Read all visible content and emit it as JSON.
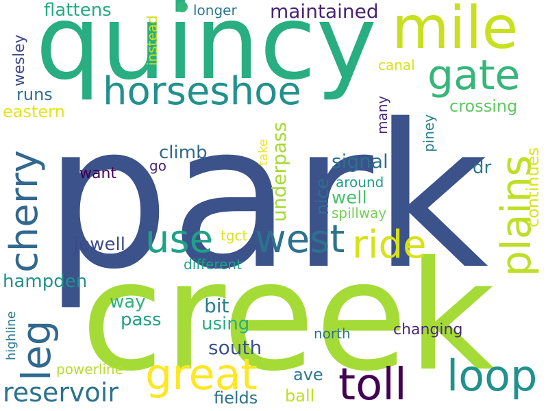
{
  "words": [
    {
      "text": "park",
      "color": "#3b528b"
    },
    {
      "text": "creek",
      "color": "#a5db36"
    },
    {
      "text": "quincy",
      "color": "#28ae80"
    },
    {
      "text": "mile",
      "color": "#c8e020"
    },
    {
      "text": "horseshoe",
      "color": "#21918c"
    },
    {
      "text": "gate",
      "color": "#35b779"
    },
    {
      "text": "cherry",
      "color": "#31688e"
    },
    {
      "text": "west",
      "color": "#2c728e"
    },
    {
      "text": "use",
      "color": "#1fa187"
    },
    {
      "text": "ride",
      "color": "#d8e219"
    },
    {
      "text": "plains",
      "color": "#bddf26"
    },
    {
      "text": "great",
      "color": "#fde725"
    },
    {
      "text": "toll",
      "color": "#440154"
    },
    {
      "text": "loop",
      "color": "#21918c"
    },
    {
      "text": "leg",
      "color": "#31688e"
    },
    {
      "text": "reservoir",
      "color": "#2c728e"
    },
    {
      "text": "flattens",
      "color": "#25ab82"
    },
    {
      "text": "maintained",
      "color": "#482374"
    },
    {
      "text": "longer",
      "color": "#2a788e"
    },
    {
      "text": "instead",
      "color": "#d0e11c"
    },
    {
      "text": "wesley",
      "color": "#3e4989"
    },
    {
      "text": "runs",
      "color": "#2e6f8e"
    },
    {
      "text": "eastern",
      "color": "#e2e418"
    },
    {
      "text": "canal",
      "color": "#d5e21a"
    },
    {
      "text": "crossing",
      "color": "#5ec962"
    },
    {
      "text": "continues",
      "color": "#dde318"
    },
    {
      "text": "many",
      "color": "#482878"
    },
    {
      "text": "piney",
      "color": "#27808e"
    },
    {
      "text": "climb",
      "color": "#31688e"
    },
    {
      "text": "go",
      "color": "#482475"
    },
    {
      "text": "want",
      "color": "#440154"
    },
    {
      "text": "take",
      "color": "#f1e51d"
    },
    {
      "text": "underpass",
      "color": "#a5db36"
    },
    {
      "text": "signal",
      "color": "#2c728e"
    },
    {
      "text": "dr",
      "color": "#2a788e"
    },
    {
      "text": "nice",
      "color": "#2e6f8e"
    },
    {
      "text": "around",
      "color": "#1f9e89"
    },
    {
      "text": "well",
      "color": "#4ac16d"
    },
    {
      "text": "spillway",
      "color": "#75d054"
    },
    {
      "text": "jewell",
      "color": "#3e4989"
    },
    {
      "text": "tgct",
      "color": "#dde318"
    },
    {
      "text": "different",
      "color": "#1fa187"
    },
    {
      "text": "hampden",
      "color": "#20928c"
    },
    {
      "text": "way",
      "color": "#2db27d"
    },
    {
      "text": "bit",
      "color": "#27808e"
    },
    {
      "text": "pass",
      "color": "#1fa187"
    },
    {
      "text": "using",
      "color": "#28ae80"
    },
    {
      "text": "south",
      "color": "#3b528b"
    },
    {
      "text": "north",
      "color": "#2c728e"
    },
    {
      "text": "changing",
      "color": "#482878"
    },
    {
      "text": "highline",
      "color": "#2a788e"
    },
    {
      "text": "powerline",
      "color": "#b5de2b"
    },
    {
      "text": "ave",
      "color": "#2a788e"
    },
    {
      "text": "fields",
      "color": "#2c728e"
    },
    {
      "text": "ball",
      "color": "#c2df23"
    }
  ]
}
